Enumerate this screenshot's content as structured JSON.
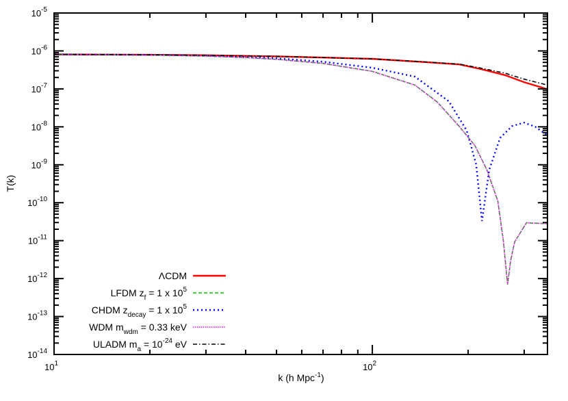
{
  "chart_data": {
    "type": "line",
    "xlabel": "k (h Mpc",
    "xlabel_sup": "-1",
    "xlabel_end": ")",
    "ylabel": "T(k)",
    "xscale": "log",
    "yscale": "log",
    "xlim": [
      10,
      355
    ],
    "ylim": [
      1e-14,
      1e-05
    ],
    "x_ticks": [
      {
        "base": "10",
        "exp": "1",
        "value": 10
      },
      {
        "base": "10",
        "exp": "2",
        "value": 100
      }
    ],
    "y_ticks": [
      {
        "base": "10",
        "exp": "-5",
        "value": 1e-05
      },
      {
        "base": "10",
        "exp": "-6",
        "value": 1e-06
      },
      {
        "base": "10",
        "exp": "-7",
        "value": 1e-07
      },
      {
        "base": "10",
        "exp": "-8",
        "value": 1e-08
      },
      {
        "base": "10",
        "exp": "-9",
        "value": 1e-09
      },
      {
        "base": "10",
        "exp": "-10",
        "value": 1e-10
      },
      {
        "base": "10",
        "exp": "-11",
        "value": 1e-11
      },
      {
        "base": "10",
        "exp": "-12",
        "value": 1e-12
      },
      {
        "base": "10",
        "exp": "-13",
        "value": 1e-13
      },
      {
        "base": "10",
        "exp": "-14",
        "value": 1e-14
      }
    ],
    "grid": false,
    "legend_placement": "bottom-left",
    "series": [
      {
        "name": "ΛCDM",
        "label": [
          {
            "t": "ΛCDM"
          }
        ],
        "color": "#ff0000",
        "style": "solid",
        "x": [
          10,
          20,
          30,
          50,
          70,
          100,
          150,
          188,
          220,
          261,
          300,
          355
        ],
        "y": [
          8.1e-07,
          7.9e-07,
          7.7e-07,
          7.2e-07,
          6.7e-07,
          6.2e-07,
          5e-07,
          4.4e-07,
          3.3e-07,
          2.3e-07,
          1.5e-07,
          9.8e-08
        ]
      },
      {
        "name": "LFDM",
        "label": [
          {
            "t": "LFDM z"
          },
          {
            "t": "f",
            "s": "sub"
          },
          {
            "t": " = 1 x 10"
          },
          {
            "t": "5",
            "s": "sup"
          }
        ],
        "color": "#00cc00",
        "style": "dashed",
        "x": [
          10,
          20,
          30,
          40,
          50,
          70,
          100,
          136,
          160,
          188,
          210,
          229,
          248,
          258,
          266,
          272,
          280,
          305,
          355
        ],
        "y": [
          8.1e-07,
          7.8e-07,
          7.3e-07,
          6.7e-07,
          6e-07,
          4.7e-07,
          2.9e-07,
          1.26e-07,
          4.5e-08,
          1e-08,
          3.2e-09,
          7.4e-10,
          1.1e-10,
          1e-11,
          7e-13,
          3e-12,
          9.3e-12,
          2.95e-11,
          2.8e-11
        ]
      },
      {
        "name": "CHDM",
        "label": [
          {
            "t": "CHDM z"
          },
          {
            "t": "decay",
            "s": "sub"
          },
          {
            "t": " = 1 x 10"
          },
          {
            "t": "5",
            "s": "sup"
          }
        ],
        "color": "#0000ff",
        "style": "dotted",
        "x": [
          10,
          20,
          30,
          50,
          70,
          100,
          136,
          174,
          198,
          212,
          221,
          233,
          252,
          275,
          300,
          325,
          355
        ],
        "y": [
          8.1e-07,
          7.9e-07,
          7.5e-07,
          6.4e-07,
          5.2e-07,
          3.6e-07,
          2.1e-07,
          4.7e-08,
          7.9e-09,
          1e-09,
          3.3e-11,
          7.4e-10,
          5.1e-09,
          1.05e-08,
          1.29e-08,
          1e-08,
          5.9e-09
        ]
      },
      {
        "name": "WDM",
        "label": [
          {
            "t": "WDM m"
          },
          {
            "t": "wdm",
            "s": "sub"
          },
          {
            "t": " = 0.33 keV"
          }
        ],
        "color": "#ff00ff",
        "style": "fine-dotted",
        "x": [
          10,
          20,
          30,
          40,
          50,
          70,
          100,
          136,
          160,
          188,
          210,
          229,
          248,
          258,
          266,
          272,
          280,
          305,
          355
        ],
        "y": [
          8.1e-07,
          7.8e-07,
          7.3e-07,
          6.7e-07,
          6e-07,
          4.7e-07,
          2.9e-07,
          1.26e-07,
          4.5e-08,
          1e-08,
          3.2e-09,
          7.4e-10,
          1.1e-10,
          1e-11,
          7e-13,
          3e-12,
          9.3e-12,
          2.95e-11,
          2.8e-11
        ]
      },
      {
        "name": "ULADM",
        "label": [
          {
            "t": "ULADM m"
          },
          {
            "t": "a",
            "s": "sub"
          },
          {
            "t": " = 10"
          },
          {
            "t": "-24",
            "s": "sup"
          },
          {
            "t": " eV"
          }
        ],
        "color": "#000000",
        "style": "dash-dot",
        "x": [
          10,
          20,
          30,
          50,
          70,
          100,
          150,
          188,
          220,
          261,
          300,
          355
        ],
        "y": [
          8.1e-07,
          7.9e-07,
          7.7e-07,
          7.2e-07,
          6.7e-07,
          6.2e-07,
          5.1e-07,
          4.5e-07,
          3.5e-07,
          2.6e-07,
          1.8e-07,
          1.26e-07
        ]
      }
    ]
  }
}
